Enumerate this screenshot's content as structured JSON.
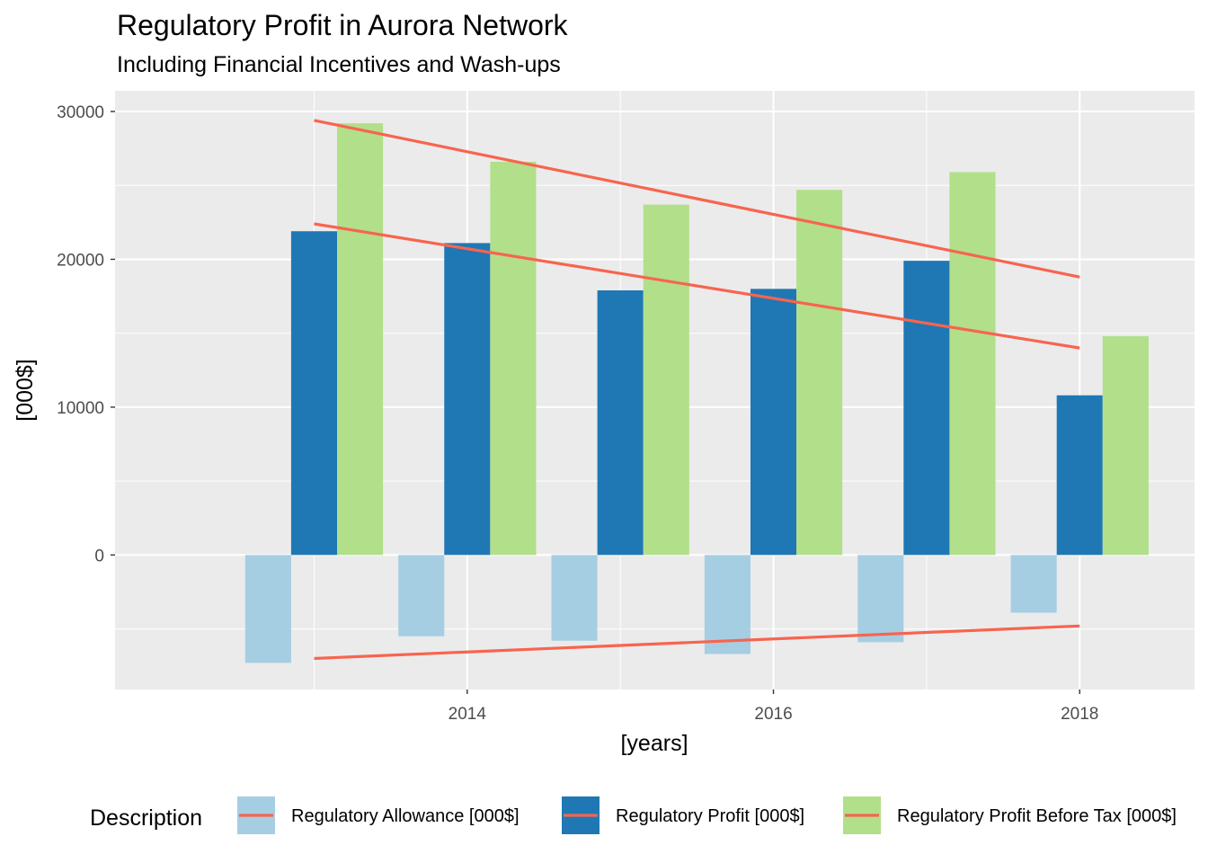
{
  "chart_data": {
    "type": "bar",
    "title": "Regulatory Profit in Aurora Network",
    "subtitle": "Including Financial Incentives and Wash-ups",
    "xlabel": "[years]",
    "ylabel": "[000$]",
    "x": [
      2013,
      2014,
      2015,
      2016,
      2017,
      2018
    ],
    "xlim": [
      2011.7,
      2018.75
    ],
    "xticks": [
      2014,
      2016,
      2018
    ],
    "ylim": [
      -9100,
      31400
    ],
    "yticks": [
      0,
      10000,
      20000,
      30000
    ],
    "grid": true,
    "legend": {
      "title": "Description",
      "position": "bottom"
    },
    "series": [
      {
        "name": "Regulatory Allowance [000$]",
        "color": "#a6cee3",
        "values": [
          -7300,
          -5500,
          -5800,
          -6700,
          -5900,
          -3900
        ],
        "trend": {
          "x": [
            2013,
            2018
          ],
          "y": [
            -7000,
            -4800
          ]
        }
      },
      {
        "name": "Regulatory Profit [000$]",
        "color": "#1f78b4",
        "values": [
          21900,
          21100,
          17900,
          18000,
          19900,
          10800
        ],
        "trend": {
          "x": [
            2013,
            2018
          ],
          "y": [
            22400,
            14000
          ]
        }
      },
      {
        "name": "Regulatory Profit Before Tax [000$]",
        "color": "#b2df8a",
        "values": [
          29200,
          26600,
          23700,
          24700,
          25900,
          14800
        ],
        "trend": {
          "x": [
            2013,
            2018
          ],
          "y": [
            29400,
            18800
          ]
        }
      }
    ],
    "trend_color": "#f8644f"
  }
}
